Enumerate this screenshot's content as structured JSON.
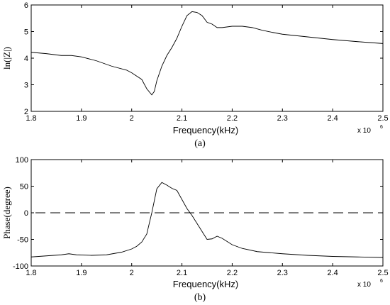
{
  "chart_data": [
    {
      "type": "line",
      "caption": "(a)",
      "xlabel": "Frequency(kHz)",
      "ylabel": "ln(|Z|)",
      "x_multiplier": "x 10",
      "x_multiplier_exp": "6",
      "xlim": [
        1.8,
        2.5
      ],
      "ylim": [
        2,
        6
      ],
      "xticks": [
        "1.8",
        "1.9",
        "2",
        "2.1",
        "2.2",
        "2.3",
        "2.4",
        "2.5"
      ],
      "yticks": [
        "2",
        "3",
        "4",
        "5",
        "6"
      ],
      "grid": false,
      "line_color": "#000000",
      "series": [
        {
          "x": [
            1.8,
            1.83,
            1.86,
            1.88,
            1.9,
            1.93,
            1.96,
            1.99,
            2.0,
            2.02,
            2.03,
            2.04,
            2.045,
            2.05,
            2.06,
            2.07,
            2.08,
            2.09,
            2.1,
            2.11,
            2.12,
            2.13,
            2.14,
            2.15,
            2.16,
            2.17,
            2.18,
            2.2,
            2.22,
            2.24,
            2.26,
            2.28,
            2.3,
            2.35,
            2.4,
            2.45,
            2.5
          ],
          "y": [
            4.22,
            4.17,
            4.1,
            4.1,
            4.05,
            3.9,
            3.7,
            3.55,
            3.45,
            3.2,
            2.85,
            2.62,
            2.75,
            3.15,
            3.7,
            4.1,
            4.4,
            4.75,
            5.2,
            5.6,
            5.75,
            5.72,
            5.6,
            5.35,
            5.28,
            5.15,
            5.15,
            5.2,
            5.2,
            5.15,
            5.05,
            4.97,
            4.9,
            4.8,
            4.7,
            4.62,
            4.55
          ]
        }
      ]
    },
    {
      "type": "line",
      "caption": "(b)",
      "xlabel": "Frequency(kHz)",
      "ylabel": "Phase(degree)",
      "x_multiplier": "x 10",
      "x_multiplier_exp": "6",
      "xlim": [
        1.8,
        2.5
      ],
      "ylim": [
        -100,
        100
      ],
      "xticks": [
        "1.8",
        "1.9",
        "2",
        "2.1",
        "2.2",
        "2.3",
        "2.4",
        "2.5"
      ],
      "yticks": [
        "100",
        "50",
        "0",
        "-50",
        "-100"
      ],
      "grid": false,
      "line_color": "#000000",
      "reference_line": {
        "y": 0,
        "style": "dashed"
      },
      "series": [
        {
          "x": [
            1.8,
            1.83,
            1.86,
            1.875,
            1.89,
            1.92,
            1.95,
            1.98,
            2.0,
            2.01,
            2.02,
            2.03,
            2.04,
            2.05,
            2.06,
            2.07,
            2.08,
            2.09,
            2.1,
            2.11,
            2.12,
            2.13,
            2.14,
            2.15,
            2.16,
            2.17,
            2.18,
            2.2,
            2.22,
            2.25,
            2.3,
            2.35,
            2.4,
            2.45,
            2.5
          ],
          "y": [
            -83,
            -81,
            -79,
            -77,
            -79,
            -80,
            -79,
            -74,
            -68,
            -63,
            -55,
            -40,
            0,
            45,
            57,
            52,
            46,
            42,
            25,
            8,
            -5,
            -20,
            -35,
            -50,
            -49,
            -44,
            -48,
            -60,
            -67,
            -73,
            -77,
            -80,
            -82,
            -83,
            -84
          ]
        }
      ]
    }
  ]
}
